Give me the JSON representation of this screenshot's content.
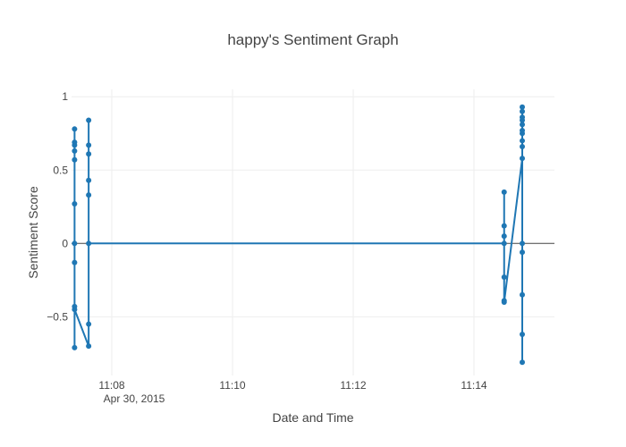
{
  "chart_data": {
    "type": "line",
    "title": "happy's Sentiment Graph",
    "xlabel": "Date and Time",
    "ylabel": "Sentiment Score",
    "date_label": "Apr 30, 2015",
    "x_axis": {
      "range": [
        "2015-04-30 11:07:20",
        "2015-04-30 11:15:20"
      ],
      "ticks": [
        "2015-04-30 11:08:00",
        "2015-04-30 11:10:00",
        "2015-04-30 11:12:00",
        "2015-04-30 11:14:00"
      ],
      "tick_labels": [
        "11:08",
        "11:10",
        "11:12",
        "11:14"
      ]
    },
    "y_axis": {
      "range": [
        -0.9,
        1.05
      ],
      "ticks": [
        -0.5,
        0,
        0.5,
        1
      ],
      "tick_labels": [
        "−0.5",
        "0",
        "0.5",
        "1"
      ]
    },
    "grid": true,
    "zeroline": true,
    "series_color": "#1f77b4",
    "series": [
      {
        "x": [
          "2015-04-30 11:07:23",
          "2015-04-30 11:07:23",
          "2015-04-30 11:07:23",
          "2015-04-30 11:07:23",
          "2015-04-30 11:07:23",
          "2015-04-30 11:07:23",
          "2015-04-30 11:07:23",
          "2015-04-30 11:07:23",
          "2015-04-30 11:07:23",
          "2015-04-30 11:07:23",
          "2015-04-30 11:07:23",
          "2015-04-30 11:07:37",
          "2015-04-30 11:07:37",
          "2015-04-30 11:07:37",
          "2015-04-30 11:07:37",
          "2015-04-30 11:07:37",
          "2015-04-30 11:07:37",
          "2015-04-30 11:07:37",
          "2015-04-30 11:07:37",
          "2015-04-30 11:14:30",
          "2015-04-30 11:14:30",
          "2015-04-30 11:14:30",
          "2015-04-30 11:14:30",
          "2015-04-30 11:14:30",
          "2015-04-30 11:14:30",
          "2015-04-30 11:14:30",
          "2015-04-30 11:14:48",
          "2015-04-30 11:14:48",
          "2015-04-30 11:14:48",
          "2015-04-30 11:14:48",
          "2015-04-30 11:14:48",
          "2015-04-30 11:14:48",
          "2015-04-30 11:14:48",
          "2015-04-30 11:14:48",
          "2015-04-30 11:14:48",
          "2015-04-30 11:14:48",
          "2015-04-30 11:14:48",
          "2015-04-30 11:14:48",
          "2015-04-30 11:14:48",
          "2015-04-30 11:14:48",
          "2015-04-30 11:14:48"
        ],
        "y": [
          -0.71,
          -0.13,
          0.27,
          0.57,
          0.63,
          0.67,
          0.69,
          0.78,
          0,
          -0.43,
          -0.45,
          -0.7,
          -0.55,
          0.33,
          0.43,
          0.61,
          0.67,
          0.84,
          0,
          0,
          0.05,
          0.35,
          0.12,
          -0.23,
          -0.39,
          -0.4,
          0.58,
          0.66,
          0.7,
          0.75,
          0.77,
          0.81,
          0.84,
          0.86,
          0.9,
          0.93,
          -0.06,
          0,
          -0.35,
          -0.62,
          -0.81
        ]
      }
    ]
  }
}
